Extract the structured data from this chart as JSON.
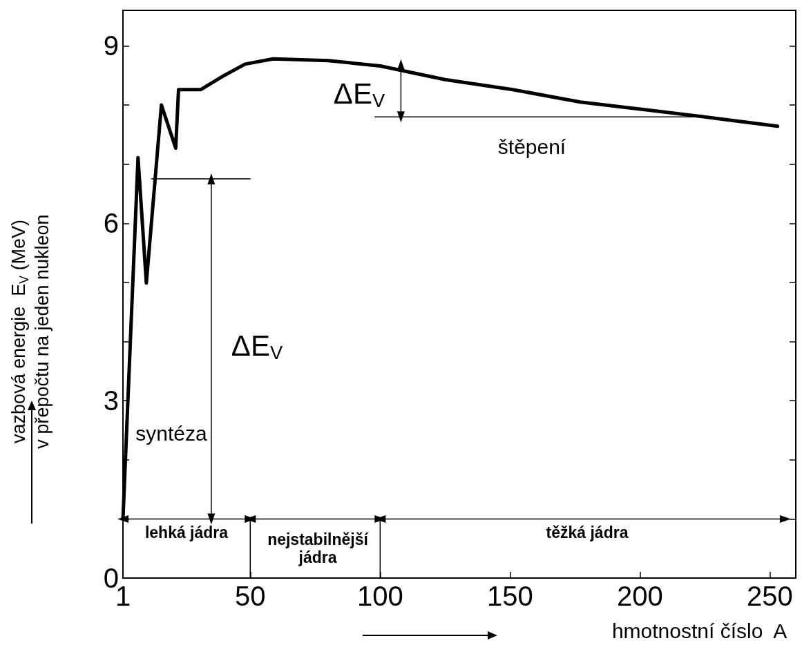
{
  "chart_data": {
    "type": "line",
    "xlabel": "hmotnostní číslo  A",
    "ylabel": "vazbová energie  E$_{V}$ (MeV)\nv přepočtu na jeden nukleon",
    "xlim": [
      1,
      260
    ],
    "xticks": [
      1,
      50,
      100,
      150,
      200,
      250
    ],
    "ylim": [
      0,
      9.6
    ],
    "yticks": [
      0,
      {
        "value": 1,
        "label": null
      },
      {
        "value": 2,
        "label": null
      },
      3,
      {
        "value": 4,
        "label": null
      },
      {
        "value": 5,
        "label": null
      },
      6,
      {
        "value": 7,
        "label": null
      },
      {
        "value": 8,
        "label": null
      },
      9
    ],
    "grid": false,
    "line_style": "solid",
    "series": [
      {
        "color": "#000000",
        "marker": "none",
        "x": [
          1,
          6.8,
          10,
          15.8,
          21.3,
          22.4,
          31,
          40,
          48,
          58.8,
          80,
          100,
          125,
          151,
          177,
          204,
          230,
          253
        ],
        "values": [
          1.0,
          7.11,
          4.99,
          8.0,
          7.27,
          8.26,
          8.26,
          8.5,
          8.69,
          8.78,
          8.75,
          8.66,
          8.43,
          8.26,
          8.05,
          7.91,
          7.77,
          7.64
        ]
      },
      {
        "color": "#000000",
        "x": [
          12,
          50
        ],
        "values": [
          6.75,
          6.75
        ]
      },
      {
        "color": "#000000",
        "x": [
          98,
          227
        ],
        "values": [
          7.8,
          7.8
        ]
      },
      {
        "color": "#000000",
        "x": [
          50,
          50
        ],
        "values": [
          0,
          1.0
        ]
      },
      {
        "color": "#000000",
        "x": [
          100,
          100
        ],
        "values": [
          0,
          1.0
        ]
      },
      {
        "color": "#000000",
        "marker": "triangle",
        "x": [
          35,
          35
        ],
        "values": [
          1.0,
          6.75
        ]
      },
      {
        "color": "#000000",
        "marker": "triangle",
        "x": [
          108,
          108
        ],
        "values": [
          7.8,
          8.68
        ]
      },
      {
        "color": "#000000",
        "marker": "triangle",
        "x": [
          1,
          50
        ],
        "values": [
          1.0,
          1.0
        ]
      },
      {
        "color": "#000000",
        "marker": "triangle",
        "x": [
          50,
          100
        ],
        "values": [
          1.0,
          1.0
        ]
      },
      {
        "color": "#000000",
        "marker": "triangle",
        "x": [
          100,
          256
        ],
        "values": [
          1.0,
          1.0
        ]
      }
    ],
    "annotations": [
      "ΔE$_{V}$",
      "ΔE$_{V}$",
      "syntéza",
      "štěpení",
      "lehká jádra",
      "nejstabilnější\njádra",
      "těžká jádra"
    ]
  }
}
